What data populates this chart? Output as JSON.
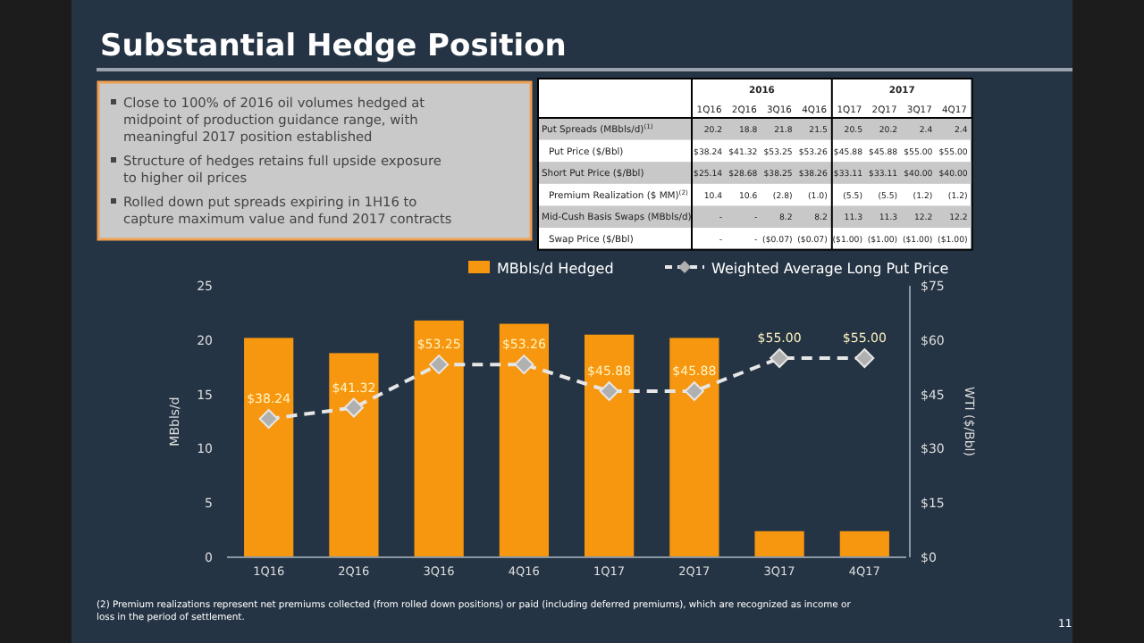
{
  "chart_data": [
    {
      "type": "other",
      "title": "Substantial Hedge Position",
      "annotations": [
        "Close to 100% of 2016 oil volumes hedged at midpoint of production guidance range, with meaningful 2017 position established",
        "Structure of hedges retains full upside exposure to higher oil prices",
        "Rolled down put spreads expiring in 1H16 to capture maximum value and fund 2017 contracts"
      ]
    },
    {
      "type": "other",
      "categories": [
        "1Q16",
        "2Q16",
        "3Q16",
        "4Q16",
        "1Q17",
        "2Q17",
        "3Q17",
        "4Q17"
      ],
      "y_categories": [
        "Put Spreads (MBbls/d)$^{(1)}$",
        "Put Price ($/Bbl)",
        "Short Put Price ($/Bbl)",
        "Premium Realization ($ MM)$^{(2)}$",
        "Mid-Cush Basis Swaps (MBbls/d)",
        "Swap Price ($/Bbl)"
      ],
      "cell_labels": [
        [
          "20.2",
          "18.8",
          "21.8",
          "21.5",
          "20.5",
          "20.2",
          "2.4",
          "2.4"
        ],
        [
          "$38.24",
          "$41.32",
          "$53.25",
          "$53.26",
          "$45.88",
          "$45.88",
          "$55.00",
          "$55.00"
        ],
        [
          "$25.14",
          "$28.68",
          "$38.25",
          "$38.26",
          "$33.11",
          "$33.11",
          "$40.00",
          "$40.00"
        ],
        [
          "10.4",
          "10.6",
          "(2.8)",
          "(1.0)",
          "(5.5)",
          "(5.5)",
          "(1.2)",
          "(1.2)"
        ],
        [
          "-",
          "-",
          "8.2",
          "8.2",
          "11.3",
          "11.3",
          "12.2",
          "12.2"
        ],
        [
          "-",
          "-",
          "($0.07)",
          "($0.07)",
          "($1.00)",
          "($1.00)",
          "($1.00)",
          "($1.00)"
        ]
      ],
      "annotations": [
        "2016",
        "2017"
      ]
    },
    {
      "type": "bar",
      "categories": [
        "1Q16",
        "2Q16",
        "3Q16",
        "4Q16",
        "1Q17",
        "2Q17",
        "3Q17",
        "4Q17"
      ],
      "series": [
        {
          "name": "MBbls/d Hedged",
          "color": "#f7960f",
          "values": [
            20.2,
            18.8,
            21.8,
            21.5,
            20.5,
            20.2,
            2.4,
            2.4
          ]
        },
        {
          "name": "Weighted Average Long Put Price",
          "type": "line",
          "axis": "y2",
          "color": "#e6e6e6",
          "line_style": "dashed",
          "marker": "diamond",
          "values": [
            38.24,
            41.32,
            53.25,
            53.26,
            45.88,
            45.88,
            55.0,
            55.0
          ],
          "value_labels": [
            "$38.24",
            "$41.32",
            "$53.25",
            "$53.26",
            "$45.88",
            "$45.88",
            "$55.00",
            "$55.00"
          ]
        }
      ],
      "ylabel": "MBbls/d",
      "y2label": "WTI ($/Bbl)",
      "ylim": [
        0,
        25
      ],
      "yticks": [
        0,
        5,
        10,
        15,
        20,
        25
      ],
      "y2lim": [
        0,
        75
      ],
      "y2ticks": [
        {
          "value": 0,
          "label": "$0"
        },
        {
          "value": 15,
          "label": "$15"
        },
        {
          "value": 30,
          "label": "$30"
        },
        {
          "value": 45,
          "label": "$45"
        },
        {
          "value": 60,
          "label": "$60"
        },
        {
          "value": 75,
          "label": "$75"
        }
      ],
      "legend": "top",
      "grid": false,
      "annotations": [
        "(2) Premium realizations represent net premiums collected (from rolled down positions) or paid (including deferred premiums), which are recognized as income or loss in the period of settlement.",
        "11"
      ]
    }
  ]
}
